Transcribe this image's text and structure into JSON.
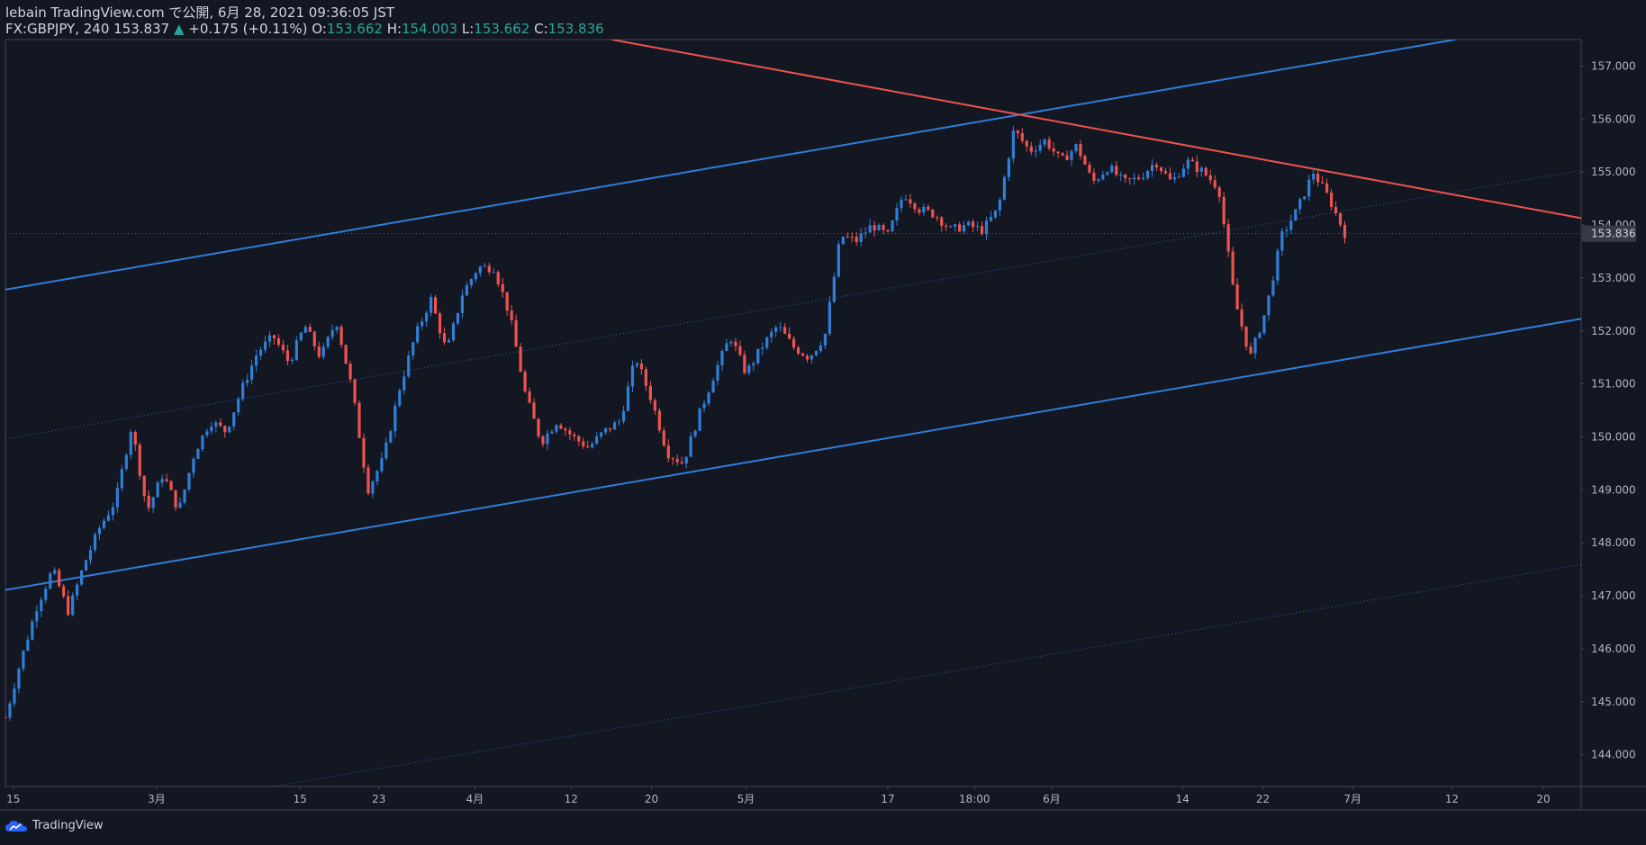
{
  "header": {
    "published": "lebain TradingView.com で公開, 6月 28, 2021 09:36:05 JST",
    "symbol": "FX:GBPJPY, 240 153.837",
    "change_arrow": "▲",
    "change": "+0.175 (+0.11%)",
    "o_label": "O:",
    "o_value": "153.662",
    "h_label": "H:",
    "h_value": "154.003",
    "l_label": "L:",
    "l_value": "153.662",
    "c_label": "C:",
    "c_value": "153.836"
  },
  "footer": {
    "brand": "TradingView"
  },
  "colors": {
    "background": "#131722",
    "up": "#2f7ed8",
    "down": "#ef5350",
    "channel": "#2f7ed8",
    "resistance": "#ef5350",
    "axis_text": "#b2b5be",
    "grid_border": "#434651"
  },
  "chart_data": {
    "type": "candlestick",
    "ylim": [
      143.4,
      157.5
    ],
    "xlim": [
      0,
      100
    ],
    "price_ticks": [
      "157.000",
      "156.000",
      "155.000",
      "154.000",
      "153.000",
      "152.000",
      "151.000",
      "150.000",
      "149.000",
      "148.000",
      "147.000",
      "146.000",
      "145.000",
      "144.000"
    ],
    "price_tick_values": [
      157,
      156,
      155,
      154,
      153,
      152,
      151,
      150,
      149,
      148,
      147,
      146,
      145,
      144
    ],
    "last_price_label": "153.836",
    "last_price": 153.836,
    "time_labels": [
      "15",
      "3月",
      "15",
      "23",
      "4月",
      "12",
      "20",
      "5月",
      "17",
      "18:00",
      "6月",
      "14",
      "22",
      "7月",
      "12",
      "20"
    ],
    "time_label_x": [
      0.5,
      9.6,
      18.7,
      23.7,
      29.8,
      35.9,
      41.0,
      47.0,
      56.0,
      61.5,
      66.4,
      74.7,
      79.8,
      85.5,
      91.8,
      97.6
    ],
    "path_points": [
      [
        0,
        144.7
      ],
      [
        1,
        145.8
      ],
      [
        2,
        146.8
      ],
      [
        3,
        147.5
      ],
      [
        4,
        146.7
      ],
      [
        5,
        147.6
      ],
      [
        6,
        148.3
      ],
      [
        7,
        148.8
      ],
      [
        8,
        150.2
      ],
      [
        9,
        148.6
      ],
      [
        10,
        149.3
      ],
      [
        11,
        148.6
      ],
      [
        12,
        149.7
      ],
      [
        13,
        150.3
      ],
      [
        14,
        150.1
      ],
      [
        15,
        150.9
      ],
      [
        16,
        151.6
      ],
      [
        17,
        151.9
      ],
      [
        18,
        151.4
      ],
      [
        19,
        152.1
      ],
      [
        20,
        151.5
      ],
      [
        21,
        152.2
      ],
      [
        22,
        150.9
      ],
      [
        23,
        149.0
      ],
      [
        24,
        149.6
      ],
      [
        25,
        150.9
      ],
      [
        26,
        151.9
      ],
      [
        27,
        152.6
      ],
      [
        28,
        151.6
      ],
      [
        29,
        152.7
      ],
      [
        30,
        153.2
      ],
      [
        31,
        153.2
      ],
      [
        32,
        152.3
      ],
      [
        33,
        150.8
      ],
      [
        34,
        149.9
      ],
      [
        35,
        150.3
      ],
      [
        36,
        150.0
      ],
      [
        37,
        149.8
      ],
      [
        38,
        150.1
      ],
      [
        39,
        150.3
      ],
      [
        40,
        151.5
      ],
      [
        41,
        150.7
      ],
      [
        42,
        149.7
      ],
      [
        43,
        149.5
      ],
      [
        44,
        150.4
      ],
      [
        45,
        151.2
      ],
      [
        46,
        151.9
      ],
      [
        47,
        151.2
      ],
      [
        48,
        151.7
      ],
      [
        49,
        152.1
      ],
      [
        50,
        151.7
      ],
      [
        51,
        151.5
      ],
      [
        52,
        151.9
      ],
      [
        53,
        153.8
      ],
      [
        54,
        153.7
      ],
      [
        55,
        154.0
      ],
      [
        56,
        153.8
      ],
      [
        57,
        154.6
      ],
      [
        58,
        154.3
      ],
      [
        59,
        154.2
      ],
      [
        60,
        153.9
      ],
      [
        61,
        154.0
      ],
      [
        62,
        153.9
      ],
      [
        63,
        154.3
      ],
      [
        64,
        155.8
      ],
      [
        65,
        155.4
      ],
      [
        66,
        155.6
      ],
      [
        67,
        155.2
      ],
      [
        68,
        155.5
      ],
      [
        69,
        154.8
      ],
      [
        70,
        155.1
      ],
      [
        71,
        154.8
      ],
      [
        72,
        154.9
      ],
      [
        73,
        155.2
      ],
      [
        74,
        154.8
      ],
      [
        75,
        155.2
      ],
      [
        76,
        155.0
      ],
      [
        77,
        154.7
      ],
      [
        78,
        152.6
      ],
      [
        79,
        151.5
      ],
      [
        80,
        152.4
      ],
      [
        81,
        153.8
      ],
      [
        82,
        154.3
      ],
      [
        83,
        155.0
      ],
      [
        84,
        154.5
      ],
      [
        85,
        153.84
      ]
    ],
    "trendlines": [
      {
        "name": "channel-upper",
        "style": "solid",
        "color": "#2f7ed8",
        "points": [
          [
            0,
            152.78
          ],
          [
            92,
            157.5
          ]
        ]
      },
      {
        "name": "channel-lower",
        "style": "solid",
        "color": "#2f7ed8",
        "points": [
          [
            0,
            147.11
          ],
          [
            100,
            152.23
          ]
        ]
      },
      {
        "name": "channel-median",
        "style": "dotted",
        "color": "#2f7ed8",
        "points": [
          [
            0,
            149.96
          ],
          [
            100,
            155.03
          ]
        ]
      },
      {
        "name": "channel-extension",
        "style": "dotted",
        "color": "#2f7ed8",
        "points": [
          [
            17,
            143.4
          ],
          [
            100,
            147.59
          ]
        ]
      },
      {
        "name": "resistance",
        "style": "solid",
        "color": "#ef5350",
        "points": [
          [
            38.5,
            157.5
          ],
          [
            100,
            154.13
          ]
        ]
      }
    ]
  }
}
